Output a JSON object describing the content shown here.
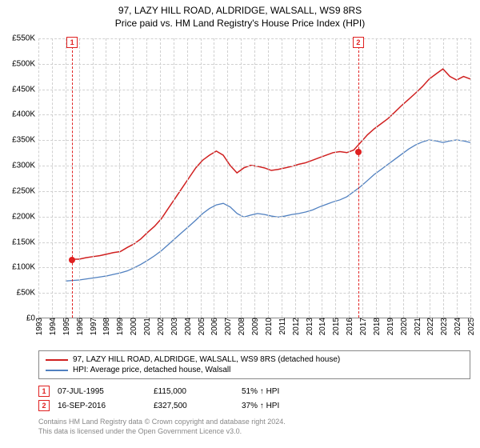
{
  "title_line1": "97, LAZY HILL ROAD, ALDRIDGE, WALSALL, WS9 8RS",
  "title_line2": "Price paid vs. HM Land Registry's House Price Index (HPI)",
  "chart": {
    "type": "line",
    "background_color": "#ffffff",
    "grid_color": "#d0d0d0",
    "axis_color": "#888888",
    "ylim": [
      0,
      550000
    ],
    "ytick_step": 50000,
    "ytick_prefix": "£",
    "ytick_labels": [
      "£0",
      "£50K",
      "£100K",
      "£150K",
      "£200K",
      "£250K",
      "£300K",
      "£350K",
      "£400K",
      "£450K",
      "£500K",
      "£550K"
    ],
    "x_start": 1993,
    "x_end": 2025,
    "x_ticks": [
      1993,
      1994,
      1995,
      1996,
      1997,
      1998,
      1999,
      2000,
      2001,
      2002,
      2003,
      2004,
      2005,
      2006,
      2007,
      2008,
      2009,
      2010,
      2011,
      2012,
      2013,
      2014,
      2015,
      2016,
      2017,
      2018,
      2019,
      2020,
      2021,
      2022,
      2023,
      2024,
      2025
    ],
    "label_fontsize": 10,
    "title_fontsize": 12,
    "series": [
      {
        "name": "97, LAZY HILL ROAD, ALDRIDGE, WALSALL, WS9 8RS (detached house)",
        "color": "#d02020",
        "line_width": 1.5,
        "start_year": 1995.5,
        "values": [
          115,
          115,
          118,
          120,
          122,
          125,
          128,
          130,
          138,
          145,
          155,
          168,
          180,
          195,
          215,
          235,
          255,
          275,
          295,
          310,
          320,
          328,
          320,
          300,
          285,
          295,
          300,
          298,
          295,
          290,
          292,
          295,
          298,
          302,
          305,
          310,
          315,
          320,
          325,
          327,
          325,
          330,
          345,
          360,
          372,
          382,
          392,
          405,
          418,
          430,
          442,
          455,
          470,
          480,
          490,
          475,
          468,
          475,
          470
        ],
        "value_scale": 1000
      },
      {
        "name": "HPI: Average price, detached house, Walsall",
        "color": "#5080c0",
        "line_width": 1.3,
        "start_year": 1995,
        "values": [
          72,
          73,
          74,
          76,
          78,
          80,
          82,
          85,
          88,
          92,
          98,
          105,
          113,
          122,
          132,
          144,
          156,
          168,
          180,
          192,
          205,
          215,
          222,
          225,
          218,
          205,
          198,
          202,
          205,
          203,
          200,
          198,
          200,
          203,
          205,
          208,
          212,
          218,
          223,
          228,
          232,
          238,
          248,
          258,
          270,
          282,
          292,
          302,
          312,
          322,
          332,
          340,
          346,
          350,
          348,
          345,
          348,
          350,
          348,
          345
        ],
        "value_scale": 1000
      }
    ],
    "markers": [
      {
        "n": "1",
        "year": 1995.5,
        "value": 115000,
        "show_dot": true
      },
      {
        "n": "2",
        "year": 2016.7,
        "value": 327500,
        "show_dot": true
      }
    ]
  },
  "legend": {
    "items": [
      {
        "label": "97, LAZY HILL ROAD, ALDRIDGE, WALSALL, WS9 8RS (detached house)",
        "color": "#d02020"
      },
      {
        "label": "HPI: Average price, detached house, Walsall",
        "color": "#5080c0"
      }
    ]
  },
  "sales": [
    {
      "n": "1",
      "date": "07-JUL-1995",
      "price": "£115,000",
      "delta": "51% ↑ HPI"
    },
    {
      "n": "2",
      "date": "16-SEP-2016",
      "price": "£327,500",
      "delta": "37% ↑ HPI"
    }
  ],
  "footer_line1": "Contains HM Land Registry data © Crown copyright and database right 2024.",
  "footer_line2": "This data is licensed under the Open Government Licence v3.0."
}
